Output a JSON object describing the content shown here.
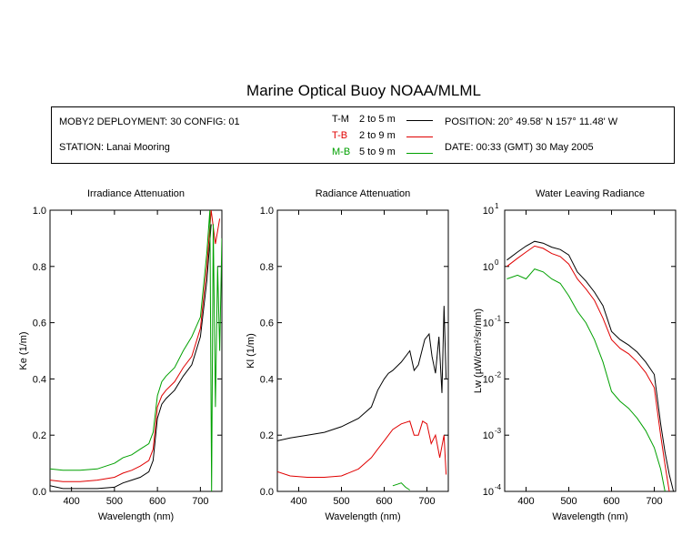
{
  "title": "Marine Optical Buoy NOAA/MLML",
  "info": {
    "deployment": "MOBY2 DEPLOYMENT: 30 CONFIG: 01",
    "station": "STATION: Lanai Mooring",
    "position": "POSITION: 20° 49.58' N   157° 11.48' W",
    "date": "DATE: 00:33 (GMT) 30 May 2005",
    "legend": [
      {
        "label": "T-M",
        "range": "2 to 5  m",
        "color": "#000000"
      },
      {
        "label": "T-B",
        "range": "2 to 9  m",
        "color": "#e00000"
      },
      {
        "label": "M-B",
        "range": "5 to 9  m",
        "color": "#00a000"
      }
    ]
  },
  "chart_data": [
    {
      "type": "line",
      "title": "Irradiance Attenuation",
      "xlabel": "Wavelength (nm)",
      "ylabel": "Ke  (1/m)",
      "xlim": [
        350,
        750
      ],
      "ylim": [
        0,
        1
      ],
      "xticks": [
        400,
        500,
        600,
        700
      ],
      "xtick_labels": [
        "400",
        "500",
        "600",
        "700"
      ],
      "yticks": [
        0,
        0.2,
        0.4,
        0.6,
        0.8,
        1.0
      ],
      "ytick_labels": [
        "0.0",
        "0.2",
        "0.4",
        "0.6",
        "0.8",
        "1.0"
      ],
      "yscale": "linear",
      "series": [
        {
          "name": "T-M",
          "color": "#000000",
          "x": [
            350,
            380,
            420,
            460,
            500,
            520,
            540,
            560,
            580,
            590,
            600,
            610,
            620,
            640,
            660,
            680,
            700,
            715,
            725
          ],
          "y": [
            0.02,
            0.01,
            0.01,
            0.01,
            0.015,
            0.03,
            0.04,
            0.05,
            0.07,
            0.11,
            0.26,
            0.31,
            0.33,
            0.36,
            0.41,
            0.45,
            0.55,
            0.75,
            0.95
          ]
        },
        {
          "name": "T-B",
          "color": "#e00000",
          "x": [
            350,
            380,
            420,
            460,
            500,
            520,
            540,
            560,
            580,
            590,
            600,
            610,
            620,
            640,
            660,
            680,
            700,
            715,
            725,
            735,
            745
          ],
          "y": [
            0.04,
            0.035,
            0.035,
            0.04,
            0.05,
            0.065,
            0.075,
            0.09,
            0.11,
            0.15,
            0.3,
            0.34,
            0.36,
            0.39,
            0.44,
            0.48,
            0.58,
            0.8,
            1.0,
            0.88,
            0.97
          ]
        },
        {
          "name": "M-B",
          "color": "#00a000",
          "x": [
            350,
            380,
            420,
            460,
            500,
            520,
            540,
            560,
            580,
            590,
            600,
            610,
            620,
            640,
            660,
            680,
            700,
            715,
            722,
            726,
            730,
            735,
            740,
            745,
            750
          ],
          "y": [
            0.08,
            0.075,
            0.075,
            0.08,
            0.1,
            0.12,
            0.13,
            0.15,
            0.17,
            0.21,
            0.34,
            0.39,
            0.41,
            0.44,
            0.5,
            0.55,
            0.62,
            0.85,
            1.0,
            0.0,
            0.95,
            0.3,
            0.8,
            0.5,
            0.9
          ]
        }
      ]
    },
    {
      "type": "line",
      "title": "Radiance Attenuation",
      "xlabel": "Wavelength (nm)",
      "ylabel": "Kl  (1/m)",
      "xlim": [
        350,
        750
      ],
      "ylim": [
        0,
        1
      ],
      "xticks": [
        400,
        500,
        600,
        700
      ],
      "xtick_labels": [
        "400",
        "500",
        "600",
        "700"
      ],
      "yticks": [
        0,
        0.2,
        0.4,
        0.6,
        0.8,
        1.0
      ],
      "ytick_labels": [
        "0.0",
        "0.2",
        "0.4",
        "0.6",
        "0.8",
        "1.0"
      ],
      "yscale": "linear",
      "series": [
        {
          "name": "T-M",
          "color": "#000000",
          "x": [
            350,
            380,
            420,
            460,
            500,
            540,
            570,
            585,
            600,
            610,
            620,
            640,
            660,
            670,
            680,
            695,
            705,
            712,
            720,
            728,
            735,
            740,
            745
          ],
          "y": [
            0.18,
            0.19,
            0.2,
            0.21,
            0.23,
            0.26,
            0.3,
            0.36,
            0.4,
            0.42,
            0.43,
            0.46,
            0.5,
            0.43,
            0.45,
            0.54,
            0.56,
            0.48,
            0.42,
            0.55,
            0.35,
            0.66,
            0.4
          ]
        },
        {
          "name": "T-B",
          "color": "#e00000",
          "x": [
            350,
            380,
            420,
            460,
            500,
            540,
            570,
            585,
            600,
            610,
            620,
            640,
            660,
            670,
            680,
            690,
            700,
            710,
            720,
            730,
            740,
            745
          ],
          "y": [
            0.07,
            0.055,
            0.05,
            0.05,
            0.055,
            0.08,
            0.12,
            0.15,
            0.18,
            0.2,
            0.22,
            0.24,
            0.25,
            0.2,
            0.2,
            0.25,
            0.24,
            0.17,
            0.2,
            0.12,
            0.2,
            0.06
          ]
        },
        {
          "name": "M-B",
          "color": "#00a000",
          "x": [
            620,
            630,
            640,
            650,
            660
          ],
          "y": [
            0.02,
            0.025,
            0.03,
            0.015,
            0.005
          ]
        }
      ]
    },
    {
      "type": "line",
      "title": "Water Leaving Radiance",
      "xlabel": "Wavelength (nm)",
      "ylabel": "Lw  (µW/cm²/sr/nm)",
      "xlim": [
        350,
        750
      ],
      "ylim": [
        0.0001,
        10
      ],
      "xticks": [
        400,
        500,
        600,
        700
      ],
      "xtick_labels": [
        "400",
        "500",
        "600",
        "700"
      ],
      "yticks": [
        0.0001,
        0.001,
        0.01,
        0.1,
        1,
        10
      ],
      "ytick_labels": [
        "10-4",
        "10-3",
        "10-2",
        "10-1",
        "10 0",
        "10 1"
      ],
      "yscale": "log",
      "series": [
        {
          "name": "T-M",
          "color": "#000000",
          "x": [
            355,
            380,
            400,
            420,
            440,
            460,
            480,
            500,
            520,
            540,
            560,
            580,
            600,
            620,
            640,
            660,
            680,
            700,
            715,
            725,
            735,
            745
          ],
          "y": [
            1.3,
            1.8,
            2.3,
            2.8,
            2.6,
            2.2,
            2.0,
            1.6,
            0.8,
            0.55,
            0.35,
            0.2,
            0.07,
            0.05,
            0.04,
            0.03,
            0.02,
            0.012,
            0.0016,
            0.0005,
            0.0002,
            0.0001
          ]
        },
        {
          "name": "T-B",
          "color": "#e00000",
          "x": [
            355,
            380,
            400,
            420,
            440,
            460,
            480,
            500,
            520,
            540,
            560,
            580,
            600,
            620,
            640,
            660,
            680,
            700,
            715,
            725,
            735
          ],
          "y": [
            1.0,
            1.4,
            1.8,
            2.3,
            2.1,
            1.7,
            1.5,
            1.1,
            0.6,
            0.4,
            0.25,
            0.12,
            0.05,
            0.035,
            0.028,
            0.02,
            0.013,
            0.007,
            0.001,
            0.0003,
            0.0001
          ]
        },
        {
          "name": "M-B",
          "color": "#00a000",
          "x": [
            355,
            380,
            400,
            420,
            440,
            460,
            480,
            500,
            520,
            540,
            560,
            580,
            600,
            620,
            640,
            660,
            680,
            700,
            715,
            725
          ],
          "y": [
            0.6,
            0.7,
            0.6,
            0.9,
            0.8,
            0.6,
            0.5,
            0.3,
            0.16,
            0.1,
            0.05,
            0.02,
            0.006,
            0.004,
            0.003,
            0.002,
            0.0012,
            0.0006,
            0.00025,
            0.0001
          ]
        }
      ]
    }
  ]
}
